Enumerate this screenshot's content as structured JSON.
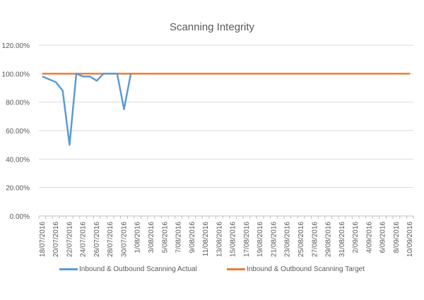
{
  "chart_data": {
    "type": "line",
    "title": "Scanning Integrity",
    "xlabel": "",
    "ylabel": "",
    "ylim": [
      0,
      1.2
    ],
    "yticks": [
      "0.00%",
      "20.00%",
      "40.00%",
      "60.00%",
      "80.00%",
      "100.00%",
      "120.00%"
    ],
    "grid": true,
    "legend_position": "bottom",
    "x_start": "18/07/2016",
    "x_end": "11/09/2016",
    "xtick_labels": [
      "18/07/2016",
      "20/07/2016",
      "22/07/2016",
      "24/07/2016",
      "26/07/2016",
      "28/07/2016",
      "30/07/2016",
      "1/08/2016",
      "3/08/2016",
      "5/08/2016",
      "7/08/2016",
      "9/08/2016",
      "11/08/2016",
      "13/08/2016",
      "15/08/2016",
      "17/08/2016",
      "19/08/2016",
      "21/08/2016",
      "23/08/2016",
      "25/08/2016",
      "27/08/2016",
      "29/08/2016",
      "31/08/2016",
      "2/09/2016",
      "4/09/2016",
      "6/09/2016",
      "8/09/2016",
      "10/09/2016"
    ],
    "series": [
      {
        "name": "Inbound & Outbound Scanning Actual",
        "color": "#5B9BD5",
        "x": [
          "18/07/2016",
          "19/07/2016",
          "20/07/2016",
          "21/07/2016",
          "22/07/2016",
          "23/07/2016",
          "24/07/2016",
          "25/07/2016",
          "26/07/2016",
          "27/07/2016",
          "28/07/2016",
          "29/07/2016",
          "30/07/2016",
          "31/07/2016"
        ],
        "values": [
          0.98,
          0.96,
          0.94,
          0.88,
          0.5,
          1.0,
          0.98,
          0.98,
          0.95,
          1.0,
          1.0,
          1.0,
          0.75,
          1.0
        ]
      },
      {
        "name": "Inbound & Outbound Scanning Target",
        "color": "#ED7D31",
        "x_range": [
          "18/07/2016",
          "11/09/2016"
        ],
        "values_constant": 1.0
      }
    ]
  },
  "legend": {
    "actual_label": "Inbound & Outbound Scanning Actual",
    "target_label": "Inbound & Outbound Scanning Target"
  }
}
